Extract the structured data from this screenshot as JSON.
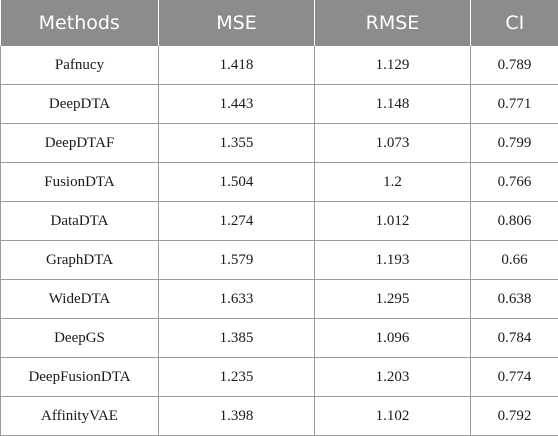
{
  "table": {
    "headers": [
      "Methods",
      "MSE",
      "RMSE",
      "CI"
    ],
    "rows": [
      [
        "Pafnucy",
        "1.418",
        "1.129",
        "0.789"
      ],
      [
        "DeepDTA",
        "1.443",
        "1.148",
        "0.771"
      ],
      [
        "DeepDTAF",
        "1.355",
        "1.073",
        "0.799"
      ],
      [
        "FusionDTA",
        "1.504",
        "1.2",
        "0.766"
      ],
      [
        "DataDTA",
        "1.274",
        "1.012",
        "0.806"
      ],
      [
        "GraphDTA",
        "1.579",
        "1.193",
        "0.66"
      ],
      [
        "WideDTA",
        "1.633",
        "1.295",
        "0.638"
      ],
      [
        "DeepGS",
        "1.385",
        "1.096",
        "0.784"
      ],
      [
        "DeepFusionDTA",
        "1.235",
        "1.203",
        "0.774"
      ],
      [
        "AffinityVAE",
        "1.398",
        "1.102",
        "0.792"
      ]
    ]
  },
  "colors": {
    "header_bg": "#8c8c8c",
    "header_text": "#ffffff",
    "border": "#9a9a9a"
  }
}
